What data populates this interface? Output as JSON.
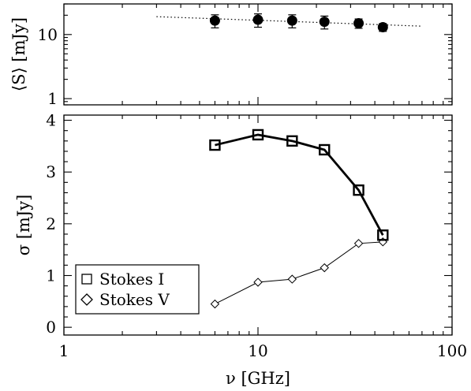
{
  "chart_data": [
    {
      "type": "scatter",
      "panel": "top",
      "xscale": "log",
      "yscale": "log",
      "xlim": [
        1,
        100
      ],
      "ylim": [
        0.8,
        30
      ],
      "xlabel": "",
      "ylabel": "⟨S⟩ [mJy]",
      "ytick_labels": [
        "1",
        "10"
      ],
      "yticks": [
        1,
        10
      ],
      "series": [
        {
          "points": [
            {
              "x": 6,
              "y": 16.5,
              "err": 3.8
            },
            {
              "x": 10,
              "y": 17.0,
              "err": 4.0
            },
            {
              "x": 15,
              "y": 16.5,
              "err": 3.8
            },
            {
              "x": 22,
              "y": 15.8,
              "err": 3.6
            },
            {
              "x": 33,
              "y": 15.0,
              "err": 2.5
            },
            {
              "x": 44,
              "y": 13.0,
              "err": 1.8
            }
          ],
          "marker": "filled-circle"
        }
      ],
      "fit_line": {
        "style": "dotted",
        "x": [
          3,
          70
        ],
        "y": [
          19.0,
          13.5
        ]
      }
    },
    {
      "type": "line",
      "panel": "bottom",
      "xscale": "log",
      "xlim": [
        1,
        100
      ],
      "ylim": [
        -0.15,
        4.1
      ],
      "xlabel": "ν [GHz]",
      "ylabel": "σ [mJy]",
      "xticks": [
        1,
        10,
        100
      ],
      "xtick_labels": [
        "1",
        "10",
        "100"
      ],
      "yticks": [
        0,
        1,
        2,
        3,
        4
      ],
      "ytick_labels": [
        "0",
        "1",
        "2",
        "3",
        "4"
      ],
      "legend": {
        "location": "lower-left"
      },
      "series": [
        {
          "name": "Stokes I",
          "marker": "square",
          "line": "thick",
          "x": [
            6,
            10,
            15,
            22,
            33,
            44
          ],
          "y": [
            3.52,
            3.72,
            3.6,
            3.43,
            2.65,
            1.78
          ]
        },
        {
          "name": "Stokes V",
          "marker": "diamond",
          "line": "thin",
          "x": [
            6,
            10,
            15,
            22,
            33,
            44
          ],
          "y": [
            0.45,
            0.87,
            0.93,
            1.15,
            1.62,
            1.65
          ]
        }
      ]
    }
  ]
}
